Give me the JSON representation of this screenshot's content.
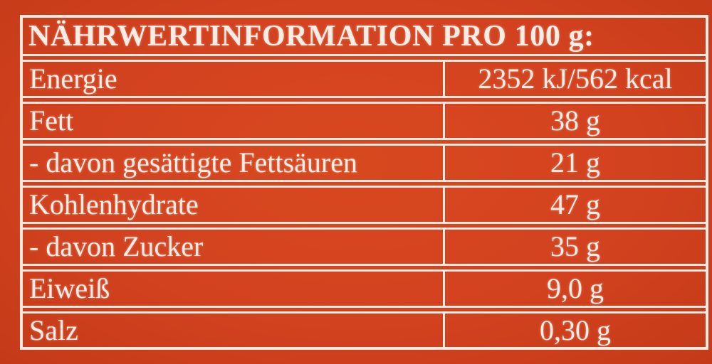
{
  "colors": {
    "background_red": "#d3421f",
    "background_red_dark": "#c43a18",
    "line_white": "#f6e9e1",
    "text_white": "#f8ece4"
  },
  "table": {
    "title": "NÄHRWERTINFORMATION PRO 100 g:",
    "rows": [
      {
        "label": "Energie",
        "value": "2352 kJ/562 kcal"
      },
      {
        "label": "Fett",
        "value": "38 g"
      },
      {
        "label": "- davon gesättigte Fettsäuren",
        "value": "21 g"
      },
      {
        "label": "Kohlenhydrate",
        "value": "47 g"
      },
      {
        "label": "- davon Zucker",
        "value": "35 g"
      },
      {
        "label": "Eiweiß",
        "value": "9,0 g"
      },
      {
        "label": "Salz",
        "value": "0,30 g"
      }
    ]
  }
}
